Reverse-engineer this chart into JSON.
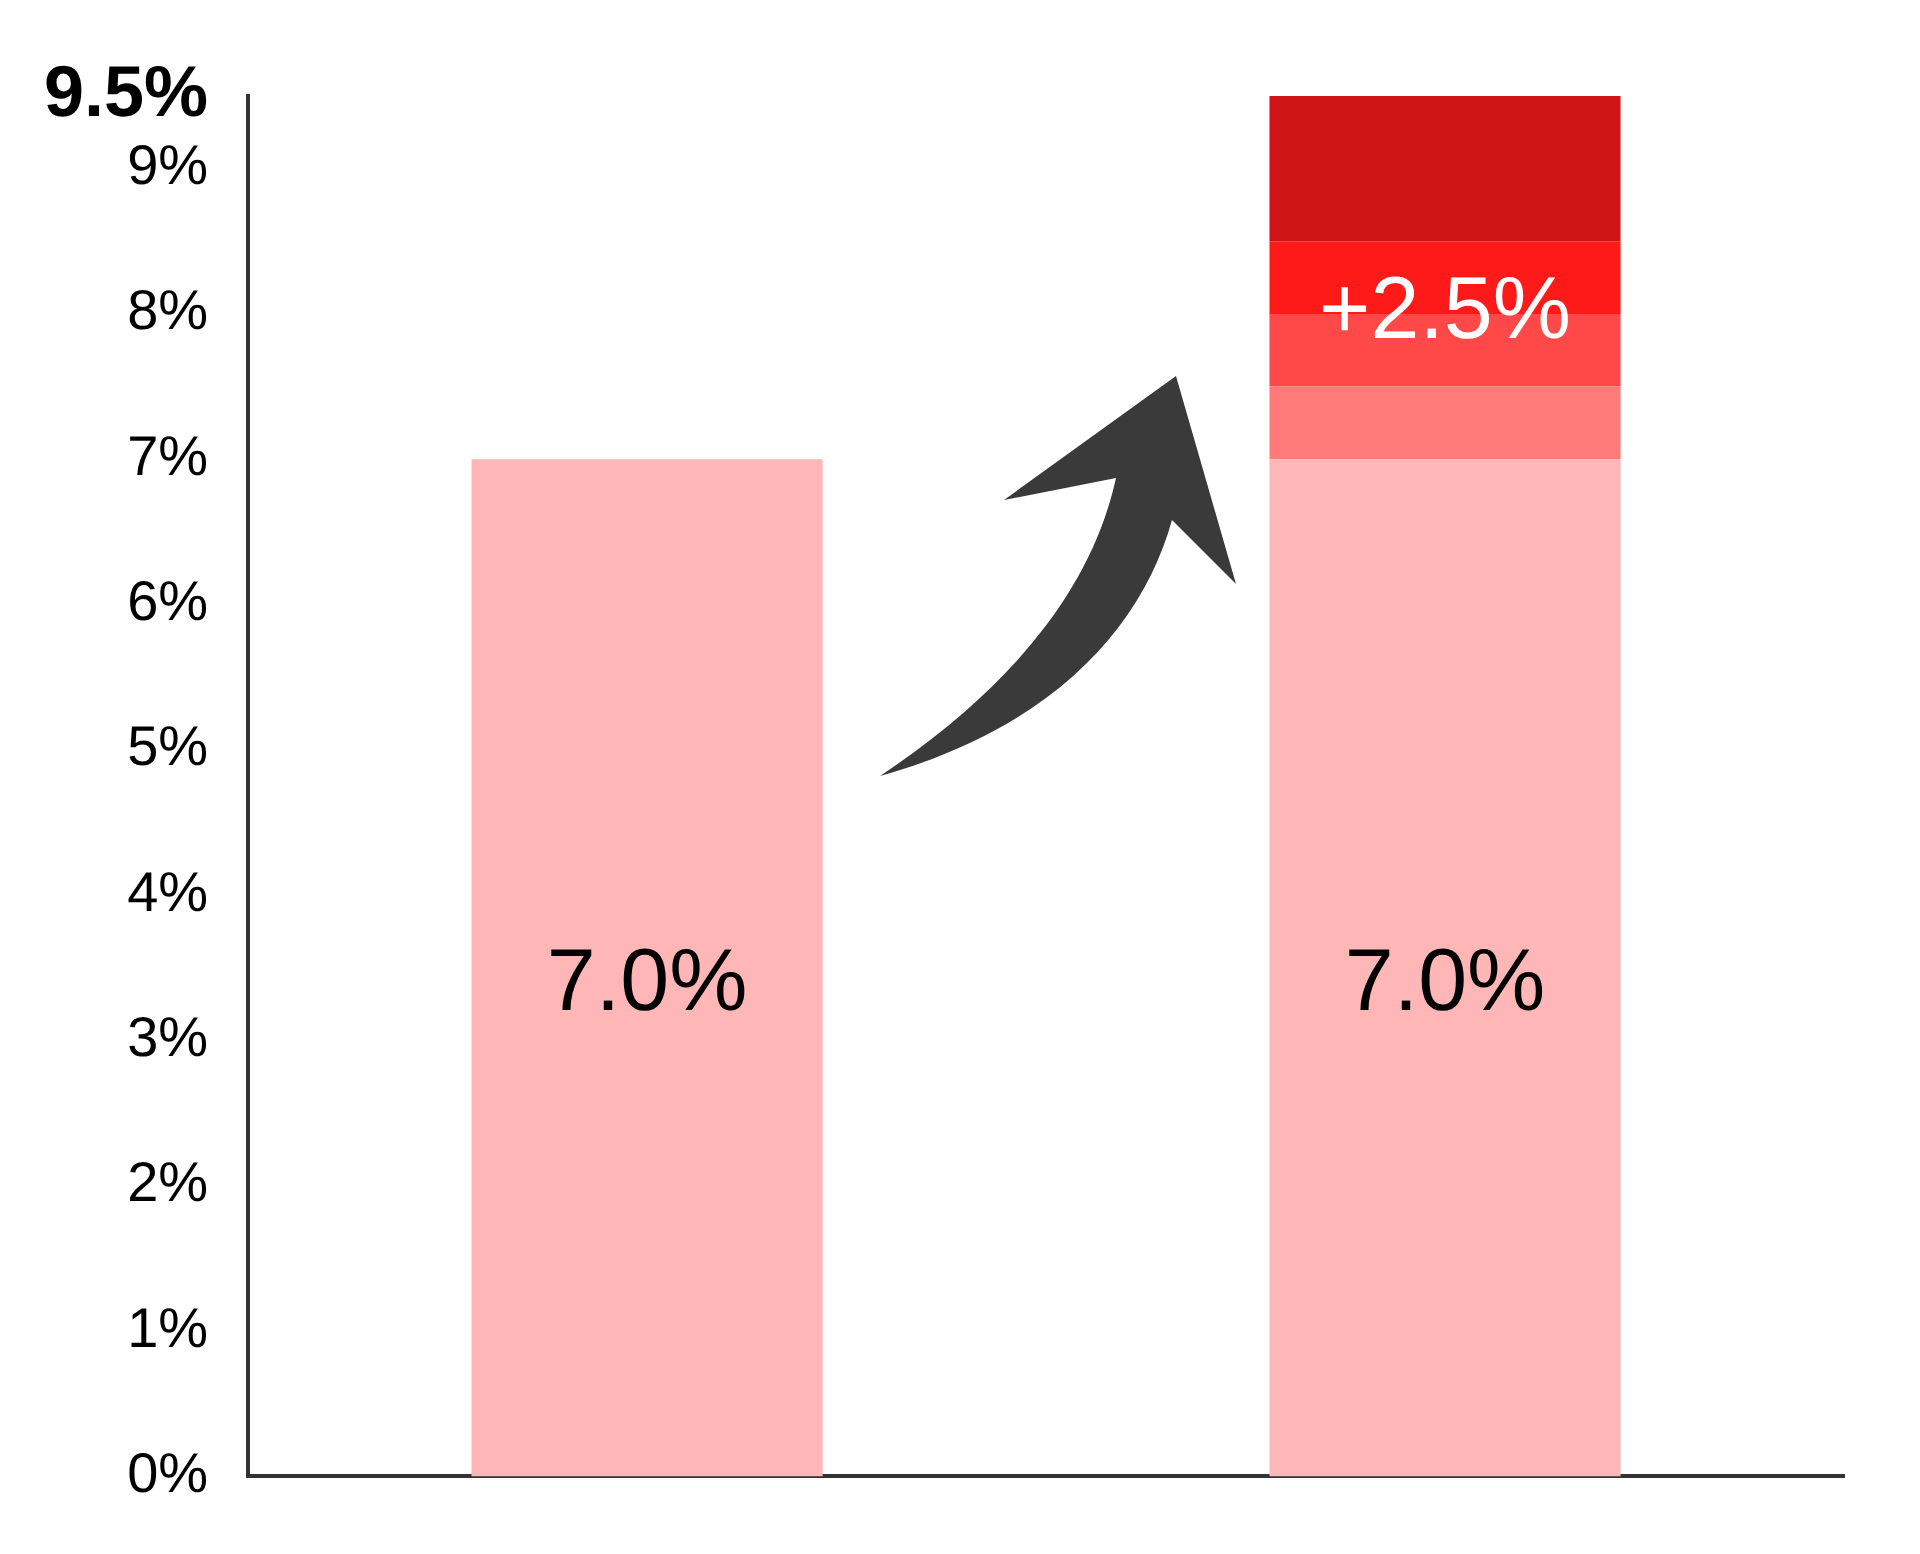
{
  "chart_data": {
    "type": "bar",
    "stacked": true,
    "categories": [
      null,
      null
    ],
    "series": [
      {
        "color": "#ffb6b6",
        "values": [
          7.0,
          7.0
        ],
        "value_labels": [
          "7.0%",
          "7.0%"
        ]
      },
      {
        "color": "#ff7b7b",
        "values": [
          null,
          0.5
        ]
      },
      {
        "color": "#ff4848",
        "values": [
          null,
          0.5
        ]
      },
      {
        "color": "#ff1a1a",
        "values": [
          null,
          0.5
        ]
      },
      {
        "color": "#cf1515",
        "values": [
          null,
          1.0
        ]
      }
    ],
    "annotations": [
      "+2.5%"
    ],
    "ylim": [
      0,
      9.5
    ],
    "yticks": [
      {
        "value": 0,
        "label": "0%"
      },
      {
        "value": 1,
        "label": "1%"
      },
      {
        "value": 2,
        "label": "2%"
      },
      {
        "value": 3,
        "label": "3%"
      },
      {
        "value": 4,
        "label": "4%"
      },
      {
        "value": 5,
        "label": "5%"
      },
      {
        "value": 6,
        "label": "6%"
      },
      {
        "value": 7,
        "label": "7%"
      },
      {
        "value": 8,
        "label": "8%"
      },
      {
        "value": 9,
        "label": "9%"
      },
      {
        "value": 9.5,
        "label": "9.5%"
      }
    ],
    "grid": false,
    "legend": false
  }
}
